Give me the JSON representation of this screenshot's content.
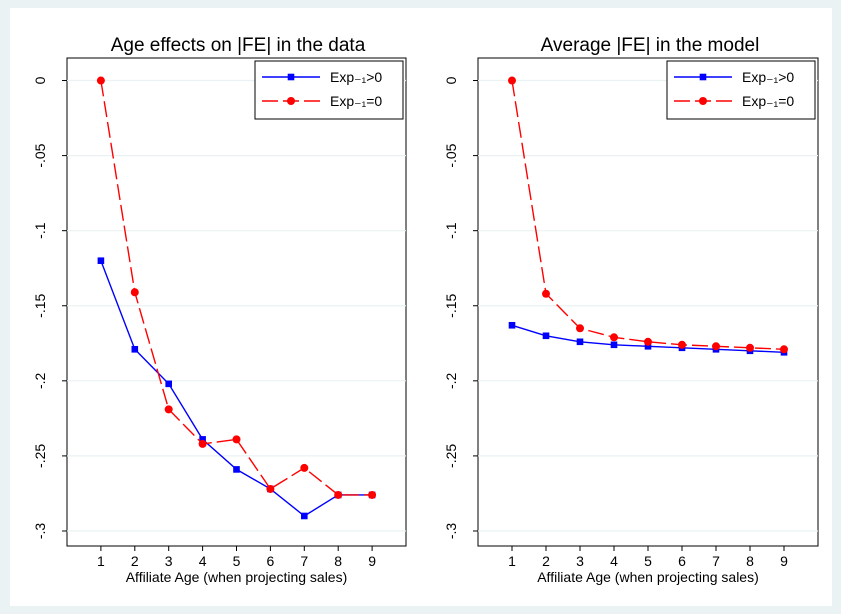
{
  "chart_data": [
    {
      "type": "line",
      "title": "Age effects on |FE| in the data",
      "xlabel": "Affiliate Age (when projecting sales)",
      "ylabel": "",
      "x": [
        1,
        2,
        3,
        4,
        5,
        6,
        7,
        8,
        9
      ],
      "xlim": [
        0,
        10
      ],
      "ylim": [
        -0.31,
        0.015
      ],
      "yticks": [
        0,
        -0.05,
        -0.1,
        -0.15,
        -0.2,
        -0.25,
        -0.3
      ],
      "ytick_labels": [
        "0",
        "-.05",
        "-.1",
        "-.15",
        "-.2",
        "-.25",
        "-.3"
      ],
      "grid": true,
      "legend_position": "top-right",
      "series": [
        {
          "name": "Exp₋₁>0",
          "color": "#0000ff",
          "marker": "square",
          "dash": "solid",
          "values": [
            -0.12,
            -0.179,
            -0.202,
            -0.239,
            -0.259,
            -0.272,
            -0.29,
            -0.276,
            -0.276
          ]
        },
        {
          "name": "Exp₋₁=0",
          "color": "#ff0000",
          "marker": "circle",
          "dash": "long-dash",
          "values": [
            0.0,
            -0.141,
            -0.219,
            -0.242,
            -0.239,
            -0.272,
            -0.258,
            -0.276,
            -0.276
          ]
        }
      ]
    },
    {
      "type": "line",
      "title": "Average |FE| in the model",
      "xlabel": "Affiliate Age (when projecting sales)",
      "ylabel": "",
      "x": [
        1,
        2,
        3,
        4,
        5,
        6,
        7,
        8,
        9
      ],
      "xlim": [
        0,
        10
      ],
      "ylim": [
        -0.31,
        0.015
      ],
      "yticks": [
        0,
        -0.05,
        -0.1,
        -0.15,
        -0.2,
        -0.25,
        -0.3
      ],
      "ytick_labels": [
        "0",
        "-.05",
        "-.1",
        "-.15",
        "-.2",
        "-.25",
        "-.3"
      ],
      "grid": true,
      "legend_position": "top-right",
      "series": [
        {
          "name": "Exp₋₁>0",
          "color": "#0000ff",
          "marker": "square",
          "dash": "solid",
          "values": [
            -0.163,
            -0.17,
            -0.174,
            -0.176,
            -0.177,
            -0.178,
            -0.179,
            -0.18,
            -0.181
          ]
        },
        {
          "name": "Exp₋₁=0",
          "color": "#ff0000",
          "marker": "circle",
          "dash": "long-dash",
          "values": [
            0.0,
            -0.142,
            -0.165,
            -0.171,
            -0.174,
            -0.176,
            -0.177,
            -0.178,
            -0.179
          ]
        }
      ]
    }
  ],
  "colors": {
    "outer_background": "#eaf2f3",
    "plot_background": "#ffffff",
    "grid": "#eaf2f3"
  }
}
